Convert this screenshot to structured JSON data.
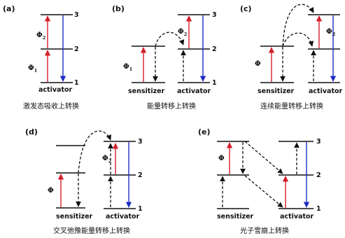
{
  "panels": {
    "a": {
      "tag": "(a)",
      "activator": "activator",
      "levels": [
        "3",
        "2",
        "1"
      ],
      "phi_lower": "Φ",
      "phi_lower_sub": "1",
      "phi_upper": "Φ",
      "phi_upper_sub": "2",
      "caption": "激发态吸收上转换"
    },
    "b": {
      "tag": "(b)",
      "sensitizer": "sensitizer",
      "activator": "activator",
      "levels": [
        "3",
        "2",
        "1"
      ],
      "phi_sens": "Φ",
      "phi_sens_sub": "1",
      "phi_act": "Φ",
      "phi_act_sub": "2",
      "caption": "能量转移上转换"
    },
    "c": {
      "tag": "(c)",
      "sensitizer": "sensitizer",
      "activator": "activator",
      "levels": [
        "3",
        "2",
        "1"
      ],
      "phi_sens": "Φ",
      "phi_act": "Φ",
      "phi_act_sub": "2",
      "caption": "连续能量转移上转换"
    },
    "d": {
      "tag": "(d)",
      "sensitizer": "sensitizer",
      "activator": "activator",
      "levels": [
        "3",
        "2",
        "1"
      ],
      "phi_sens": "Φ",
      "phi_act": "Φ",
      "phi_act_sub": "2",
      "caption": "交叉弛豫能量转移上转换"
    },
    "e": {
      "tag": "(e)",
      "sensitizer": "sensitizer",
      "activator": "activator",
      "levels": [
        "3",
        "2",
        "1"
      ],
      "phi_sens": "Φ",
      "caption": "光子雪崩上转换"
    }
  },
  "colors": {
    "excitation": "#d41f2b",
    "emission": "#1f2dc4",
    "level": "#111111"
  }
}
